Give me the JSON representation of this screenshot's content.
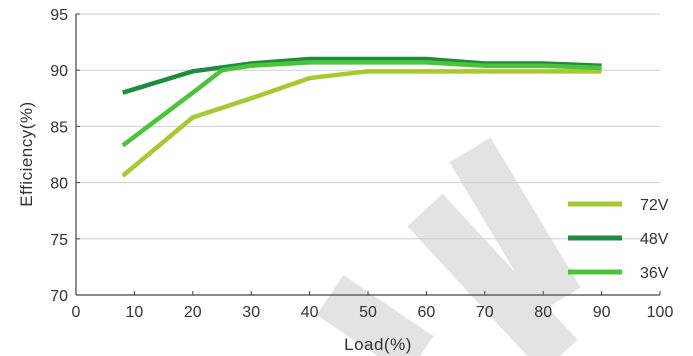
{
  "chart_data": {
    "type": "line",
    "xlabel": "Load(%)",
    "ylabel": "Efficiency(%)",
    "xlim": [
      0,
      100
    ],
    "ylim": [
      70,
      95
    ],
    "xticks": [
      0,
      10,
      20,
      30,
      40,
      50,
      60,
      70,
      80,
      90,
      100
    ],
    "yticks": [
      70,
      75,
      80,
      85,
      90,
      95
    ],
    "grid": "horizontal",
    "legend_position": "bottom-right",
    "series": [
      {
        "name": "72V",
        "color": "#a6c92f",
        "x": [
          8,
          20,
          30,
          40,
          50,
          60,
          70,
          80,
          90
        ],
        "y": [
          80.6,
          85.8,
          87.5,
          89.3,
          89.9,
          89.9,
          89.9,
          89.9,
          89.9
        ]
      },
      {
        "name": "48V",
        "color": "#1e8c3e",
        "x": [
          8,
          20,
          30,
          40,
          50,
          60,
          70,
          80,
          90
        ],
        "y": [
          88.0,
          89.9,
          90.6,
          91.0,
          91.0,
          91.0,
          90.6,
          90.6,
          90.4
        ]
      },
      {
        "name": "36V",
        "color": "#4cc43a",
        "x": [
          8,
          20,
          25,
          30,
          40,
          50,
          60,
          70,
          80,
          90
        ],
        "y": [
          83.3,
          88.0,
          90.0,
          90.4,
          90.7,
          90.7,
          90.7,
          90.4,
          90.4,
          90.2
        ]
      }
    ]
  },
  "watermark": {
    "shape": "diagonal-U",
    "color": "#e3e3e3"
  }
}
